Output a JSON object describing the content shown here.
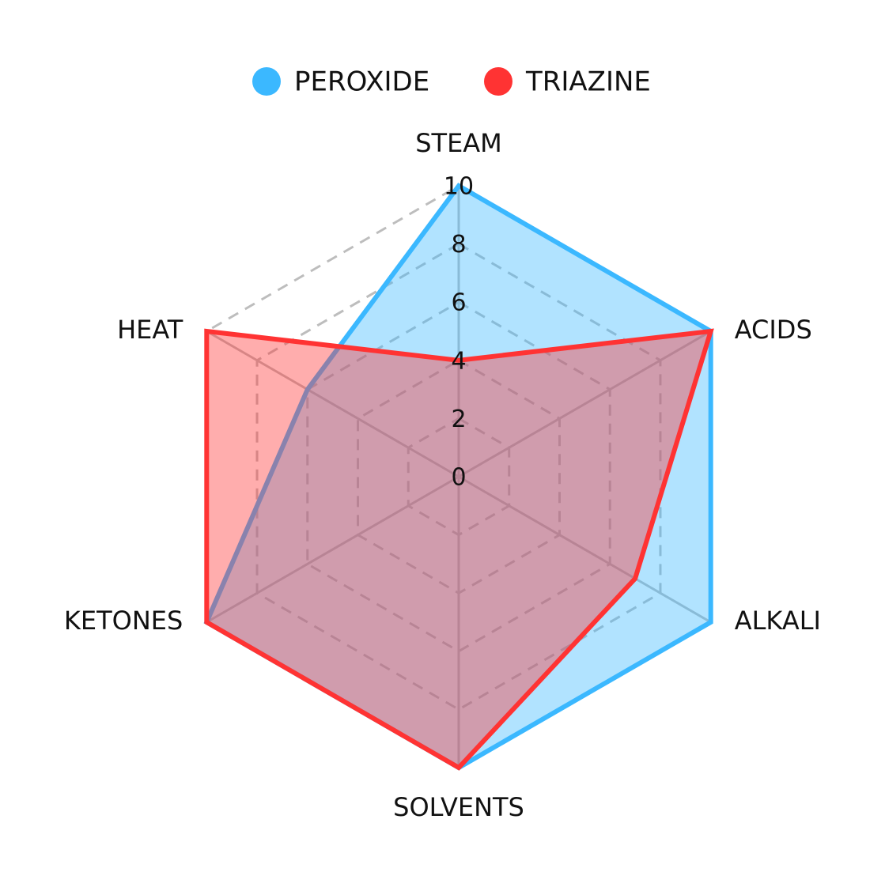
{
  "chart_data": {
    "type": "radar",
    "categories": [
      "STEAM",
      "ACIDS",
      "ALKALI",
      "SOLVENTS",
      "KETONES",
      "HEAT"
    ],
    "series": [
      {
        "name": "PEROXIDE",
        "color": "#3bb8ff",
        "values": [
          10,
          10,
          10,
          10,
          10,
          6
        ]
      },
      {
        "name": "TRIAZINE",
        "color": "#ff3333",
        "values": [
          4,
          10,
          7,
          10,
          10,
          10
        ]
      }
    ],
    "ylim": [
      0,
      10
    ],
    "ticks": [
      0,
      2,
      4,
      6,
      8,
      10
    ],
    "tick_labels": [
      "0",
      "2",
      "4",
      "6",
      "8",
      "10"
    ],
    "grid": true,
    "legend": "top-center"
  }
}
